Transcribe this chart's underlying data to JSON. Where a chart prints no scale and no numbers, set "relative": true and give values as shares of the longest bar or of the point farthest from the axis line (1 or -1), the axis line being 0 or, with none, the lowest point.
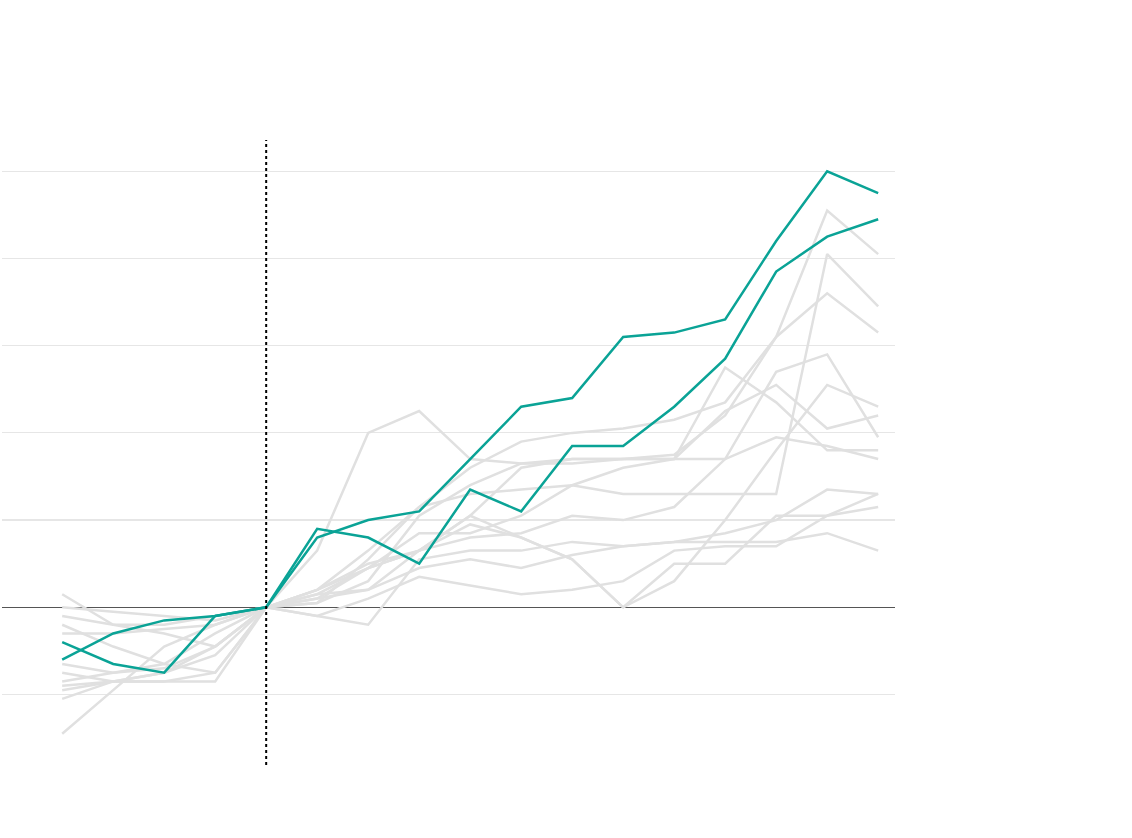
{
  "chart_data": {
    "type": "line",
    "relative": true,
    "grid": true,
    "categories": [
      null,
      null,
      null,
      null,
      null,
      null,
      null,
      null,
      null,
      null,
      null,
      null,
      null,
      null,
      null,
      null,
      null
    ],
    "series": [
      {
        "color": "#e0e0e0",
        "values": [
          -0.18,
          -0.17,
          -0.15,
          -0.09,
          0,
          0.04,
          0.13,
          0.23,
          0.32,
          0.38,
          0.4,
          0.41,
          0.43,
          0.47,
          0.62,
          0.91,
          0.81
        ]
      },
      {
        "color": "#e0e0e0",
        "values": [
          -0.04,
          -0.09,
          -0.13,
          -0.15,
          0,
          0.01,
          0.11,
          0.23,
          0.26,
          0.27,
          0.28,
          0.26,
          0.26,
          0.26,
          0.26,
          0.81,
          0.69
        ]
      },
      {
        "color": "#e0e0e0",
        "values": [
          0,
          -0.01,
          -0.02,
          -0.03,
          0,
          0.02,
          0.09,
          0.13,
          0.21,
          0.32,
          0.34,
          0.34,
          0.35,
          0.44,
          0.62,
          0.72,
          0.63
        ]
      },
      {
        "color": "#e0e0e0",
        "values": [
          -0.13,
          -0.15,
          -0.14,
          -0.09,
          0,
          0.04,
          0.1,
          0.13,
          0.16,
          0.17,
          0.21,
          0.2,
          0.23,
          0.34,
          0.54,
          0.58,
          0.39
        ]
      },
      {
        "color": "#e0e0e0",
        "values": [
          -0.29,
          -0.19,
          -0.09,
          -0.04,
          0,
          0.02,
          0.04,
          0.13,
          0.19,
          0.16,
          0.11,
          0,
          0.06,
          0.2,
          0.36,
          0.51,
          0.46
        ]
      },
      {
        "color": "#e0e0e0",
        "values": [
          0.03,
          -0.04,
          -0.04,
          -0.02,
          0,
          0.13,
          0.4,
          0.45,
          0.34,
          0.33,
          0.33,
          0.34,
          0.34,
          0.55,
          0.47,
          0.36,
          0.36
        ]
      },
      {
        "color": "#e0e0e0",
        "values": [
          -0.17,
          -0.15,
          -0.13,
          -0.06,
          0,
          0.04,
          0.09,
          0.17,
          0.17,
          0.21,
          0.28,
          0.32,
          0.34,
          0.45,
          0.51,
          0.41,
          0.44
        ]
      },
      {
        "color": "#e0e0e0",
        "values": [
          -0.06,
          -0.06,
          -0.05,
          -0.04,
          0,
          0.01,
          0.06,
          0.21,
          0.28,
          0.33,
          0.34,
          0.34,
          0.34,
          0.34,
          0.39,
          0.37,
          0.34
        ]
      },
      {
        "color": "#e0e0e0",
        "values": [
          -0.15,
          -0.17,
          -0.17,
          -0.15,
          0,
          0.03,
          0.04,
          0.09,
          0.11,
          0.09,
          0.12,
          0.14,
          0.15,
          0.17,
          0.2,
          0.27,
          0.26
        ]
      },
      {
        "color": "#e0e0e0",
        "values": [
          -0.19,
          -0.17,
          -0.17,
          -0.17,
          0,
          -0.02,
          -0.04,
          0.11,
          0.13,
          0.13,
          0.15,
          0.14,
          0.15,
          0.15,
          0.15,
          0.17,
          0.13
        ]
      },
      {
        "color": "#e0e0e0",
        "values": [
          -0.21,
          -0.17,
          -0.15,
          -0.11,
          0,
          0.03,
          0.09,
          0.13,
          0.21,
          0.16,
          0.11,
          0,
          0.1,
          0.1,
          0.21,
          0.21,
          0.26
        ]
      },
      {
        "color": "#e0e0e0",
        "values": [
          -0.02,
          -0.04,
          -0.06,
          -0.09,
          0,
          -0.02,
          0.02,
          0.07,
          0.05,
          0.03,
          0.04,
          0.06,
          0.13,
          0.14,
          0.14,
          0.21,
          0.23
        ]
      },
      {
        "color": "#0aa396",
        "values": [
          -0.08,
          -0.13,
          -0.15,
          -0.02,
          0,
          0.16,
          0.2,
          0.22,
          0.34,
          0.46,
          0.48,
          0.62,
          0.63,
          0.66,
          0.84,
          1.0,
          0.95
        ]
      },
      {
        "color": "#0aa396",
        "values": [
          -0.12,
          -0.06,
          -0.03,
          -0.02,
          0,
          0.18,
          0.16,
          0.1,
          0.27,
          0.22,
          0.37,
          0.37,
          0.46,
          0.57,
          0.77,
          0.85,
          0.89
        ]
      }
    ]
  }
}
